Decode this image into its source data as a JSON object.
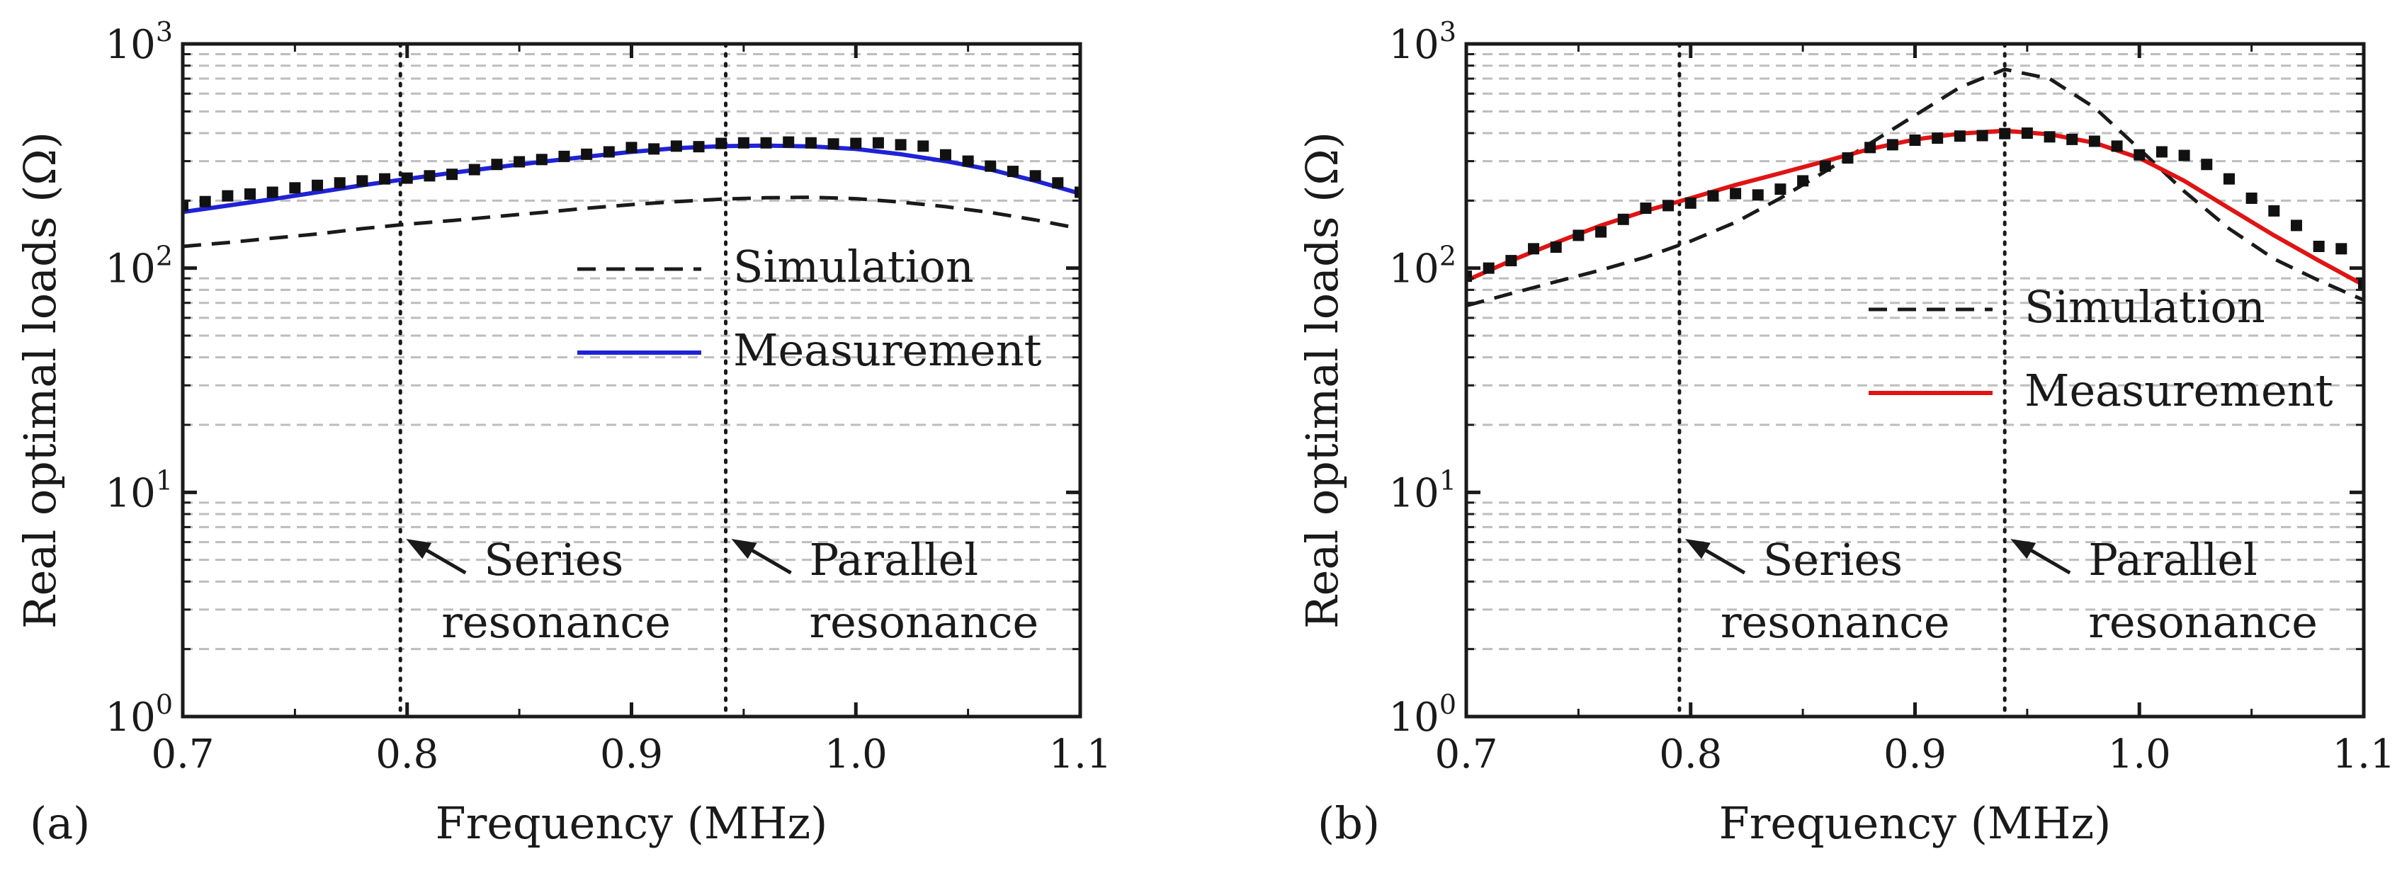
{
  "chart_data": [
    {
      "type": "line",
      "panel_label": "(a)",
      "xlabel": "Frequency (MHz)",
      "ylabel": "Real optimal loads (Ω)",
      "yscale": "log",
      "xlim": [
        0.7,
        1.1
      ],
      "ylim": [
        1,
        1000
      ],
      "x_ticks": [
        0.7,
        0.8,
        0.9,
        1.0,
        1.1
      ],
      "x_tick_labels": [
        "0.7",
        "0.8",
        "0.9",
        "1.0",
        "1.1"
      ],
      "y_ticks": [
        {
          "base": "10",
          "exp": "0",
          "value": 1
        },
        {
          "base": "10",
          "exp": "1",
          "value": 10
        },
        {
          "base": "10",
          "exp": "2",
          "value": 100
        },
        {
          "base": "10",
          "exp": "3",
          "value": 1000
        }
      ],
      "grid": true,
      "legend_position": "center-right",
      "series": [
        {
          "name": "Simulation",
          "style": "dashed",
          "color": "#1a1a1a",
          "x": [
            0.7,
            0.72,
            0.74,
            0.76,
            0.78,
            0.8,
            0.82,
            0.84,
            0.86,
            0.88,
            0.9,
            0.92,
            0.94,
            0.96,
            0.98,
            1.0,
            1.02,
            1.04,
            1.06,
            1.08,
            1.1
          ],
          "y": [
            125,
            130,
            136,
            142,
            150,
            157,
            163,
            170,
            177,
            185,
            192,
            198,
            203,
            206,
            207,
            204,
            197,
            188,
            177,
            164,
            150
          ]
        },
        {
          "name": "Measurement",
          "style": "solid",
          "color": "#1f22d6",
          "x": [
            0.7,
            0.72,
            0.74,
            0.76,
            0.78,
            0.8,
            0.82,
            0.84,
            0.86,
            0.88,
            0.9,
            0.92,
            0.94,
            0.96,
            0.98,
            1.0,
            1.02,
            1.04,
            1.06,
            1.08,
            1.1
          ],
          "y": [
            178,
            190,
            203,
            218,
            234,
            250,
            266,
            282,
            298,
            314,
            330,
            343,
            350,
            352,
            349,
            340,
            322,
            300,
            275,
            245,
            215
          ]
        }
      ],
      "markers": {
        "x": [
          0.7,
          0.71,
          0.72,
          0.73,
          0.74,
          0.75,
          0.76,
          0.77,
          0.78,
          0.79,
          0.8,
          0.81,
          0.82,
          0.83,
          0.84,
          0.85,
          0.86,
          0.87,
          0.88,
          0.89,
          0.9,
          0.91,
          0.92,
          0.93,
          0.94,
          0.95,
          0.96,
          0.97,
          0.98,
          0.99,
          1.0,
          1.01,
          1.02,
          1.03,
          1.04,
          1.05,
          1.06,
          1.07,
          1.08,
          1.09,
          1.1
        ],
        "y": [
          190,
          198,
          210,
          214,
          218,
          228,
          234,
          240,
          245,
          250,
          252,
          258,
          262,
          275,
          290,
          298,
          305,
          315,
          322,
          330,
          345,
          340,
          350,
          348,
          360,
          362,
          362,
          365,
          362,
          358,
          360,
          362,
          355,
          350,
          320,
          300,
          285,
          270,
          258,
          240,
          218
        ]
      },
      "vlines": [
        {
          "x": 0.797,
          "label_lines": [
            "Series",
            "resonance"
          ]
        },
        {
          "x": 0.942,
          "label_lines": [
            "Parallel",
            "resonance"
          ]
        }
      ]
    },
    {
      "type": "line",
      "panel_label": "(b)",
      "xlabel": "Frequency (MHz)",
      "ylabel": "Real optimal loads (Ω)",
      "yscale": "log",
      "xlim": [
        0.7,
        1.1
      ],
      "ylim": [
        1,
        1000
      ],
      "x_ticks": [
        0.7,
        0.8,
        0.9,
        1.0,
        1.1
      ],
      "x_tick_labels": [
        "0.7",
        "0.8",
        "0.9",
        "1.0",
        "1.1"
      ],
      "y_ticks": [
        {
          "base": "10",
          "exp": "0",
          "value": 1
        },
        {
          "base": "10",
          "exp": "1",
          "value": 10
        },
        {
          "base": "10",
          "exp": "2",
          "value": 100
        },
        {
          "base": "10",
          "exp": "3",
          "value": 1000
        }
      ],
      "grid": true,
      "legend_position": "center-right",
      "series": [
        {
          "name": "Simulation",
          "style": "dashed",
          "color": "#1a1a1a",
          "x": [
            0.7,
            0.72,
            0.74,
            0.76,
            0.78,
            0.8,
            0.82,
            0.84,
            0.86,
            0.88,
            0.9,
            0.92,
            0.94,
            0.96,
            0.98,
            1.0,
            1.02,
            1.04,
            1.06,
            1.08,
            1.1
          ],
          "y": [
            68,
            77,
            87,
            98,
            112,
            132,
            160,
            205,
            270,
            360,
            480,
            640,
            770,
            700,
            520,
            340,
            220,
            150,
            110,
            88,
            72
          ]
        },
        {
          "name": "Measurement",
          "style": "solid",
          "color": "#e01414",
          "x": [
            0.7,
            0.72,
            0.74,
            0.76,
            0.78,
            0.8,
            0.82,
            0.84,
            0.86,
            0.88,
            0.9,
            0.92,
            0.94,
            0.96,
            0.98,
            1.0,
            1.02,
            1.04,
            1.06,
            1.08,
            1.1
          ],
          "y": [
            88,
            108,
            130,
            155,
            180,
            205,
            235,
            265,
            300,
            340,
            375,
            398,
            410,
            395,
            362,
            310,
            245,
            185,
            140,
            108,
            84
          ]
        }
      ],
      "markers": {
        "x": [
          0.7,
          0.71,
          0.72,
          0.73,
          0.74,
          0.75,
          0.76,
          0.77,
          0.78,
          0.79,
          0.8,
          0.81,
          0.82,
          0.83,
          0.84,
          0.85,
          0.86,
          0.87,
          0.88,
          0.89,
          0.9,
          0.91,
          0.92,
          0.93,
          0.94,
          0.95,
          0.96,
          0.97,
          0.98,
          0.99,
          1.0,
          1.01,
          1.02,
          1.03,
          1.04,
          1.05,
          1.06,
          1.07,
          1.08,
          1.09,
          1.1
        ],
        "y": [
          92,
          100,
          108,
          122,
          124,
          140,
          145,
          165,
          185,
          190,
          195,
          210,
          215,
          212,
          225,
          245,
          285,
          310,
          345,
          355,
          372,
          380,
          388,
          390,
          398,
          400,
          385,
          375,
          368,
          350,
          320,
          330,
          318,
          290,
          250,
          205,
          180,
          155,
          125,
          122,
          85
        ]
      },
      "vlines": [
        {
          "x": 0.795,
          "label_lines": [
            "Series",
            "resonance"
          ]
        },
        {
          "x": 0.94,
          "label_lines": [
            "Parallel",
            "resonance"
          ]
        }
      ]
    }
  ]
}
